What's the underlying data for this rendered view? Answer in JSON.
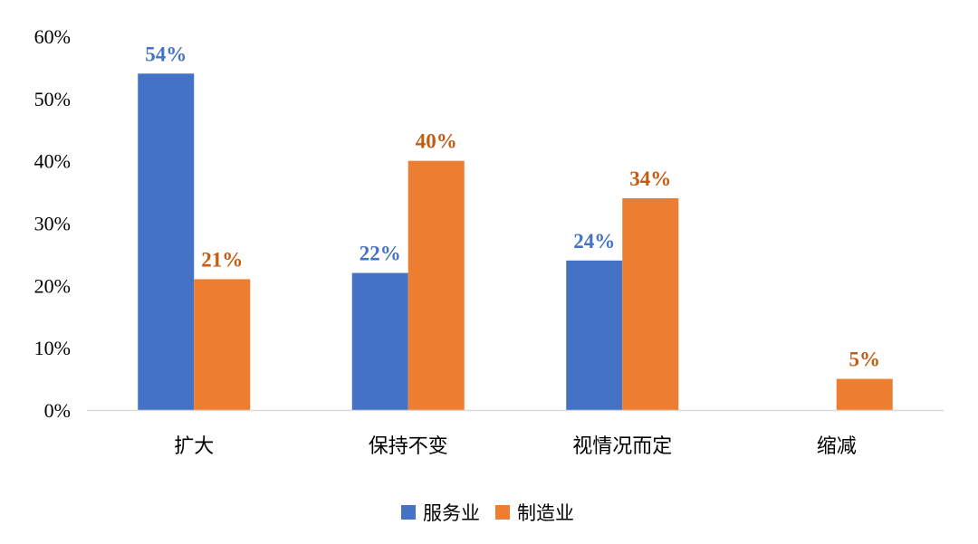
{
  "chart_data": {
    "type": "bar",
    "categories": [
      "扩大",
      "保持不变",
      "视情况而定",
      "缩减"
    ],
    "series": [
      {
        "name": "服务业",
        "values": [
          54,
          22,
          24,
          null
        ],
        "labels": [
          "54%",
          "22%",
          "24%",
          ""
        ],
        "color": "#4472C4",
        "label_color": "#4472C4"
      },
      {
        "name": "制造业",
        "values": [
          21,
          40,
          34,
          5
        ],
        "labels": [
          "21%",
          "40%",
          "34%",
          "5%"
        ],
        "color": "#ED7D31",
        "label_color": "#C55A11"
      }
    ],
    "y_ticks": [
      "0%",
      "10%",
      "20%",
      "30%",
      "40%",
      "50%",
      "60%"
    ],
    "ylim": [
      0,
      60
    ],
    "y_unit": "%",
    "grid": false,
    "legend_position": "bottom-center",
    "axis_color": "#D9D9D9"
  }
}
